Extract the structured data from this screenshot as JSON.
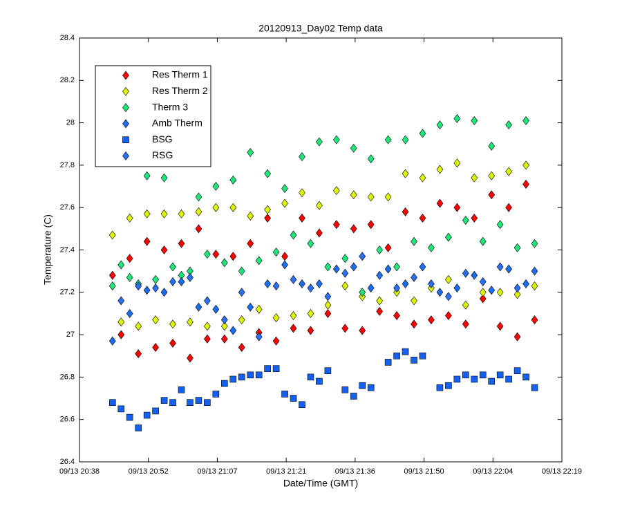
{
  "chart_data": {
    "type": "scatter",
    "title": "20120913_Day02 Temp data",
    "x_label": "Date/Time (GMT)",
    "y_label": "Temperature (C)",
    "x": [
      1245.3,
      1247.1,
      1248.9,
      1250.7,
      1252.5,
      1254.3,
      1256.1,
      1257.9,
      1259.7,
      1261.5,
      1263.3,
      1265.1,
      1266.9,
      1268.7,
      1270.5,
      1272.3,
      1274.1,
      1275.9,
      1277.7,
      1279.5,
      1281.3,
      1283.1,
      1284.9,
      1286.7,
      1288.5,
      1290.3,
      1292.1,
      1293.9,
      1295.7,
      1297.5,
      1299.3,
      1301.1,
      1302.9,
      1304.7,
      1306.5,
      1308.3,
      1310.1,
      1311.9,
      1313.7,
      1315.5,
      1317.3,
      1319.1,
      1320.9,
      1322.7,
      1324.5,
      1326.3,
      1328.1,
      1329.9,
      1331.7,
      1333.5
    ],
    "xlim": [
      1238.4,
      1339.2
    ],
    "xticks": [
      {
        "value": 1238.4,
        "label": "09/13 20:38"
      },
      {
        "value": 1252.8,
        "label": "09/13 20:52"
      },
      {
        "value": 1267.2,
        "label": "09/13 21:07"
      },
      {
        "value": 1281.6,
        "label": "09/13 21:21"
      },
      {
        "value": 1296,
        "label": "09/13 21:36"
      },
      {
        "value": 1310.4,
        "label": "09/13 21:50"
      },
      {
        "value": 1324.8,
        "label": "09/13 22:04"
      },
      {
        "value": 1339.2,
        "label": "09/13 22:19"
      }
    ],
    "ylim": [
      26.4,
      28.4
    ],
    "yticks": [
      26.4,
      26.6,
      26.8,
      27,
      27.2,
      27.4,
      27.6,
      27.8,
      28,
      28.2,
      28.4
    ],
    "legend": "upper left",
    "series": [
      {
        "name": "Res Therm 1",
        "color": "#ff0000",
        "marker": "diamond",
        "values": [
          27.28,
          27.0,
          27.36,
          26.91,
          27.44,
          26.94,
          27.4,
          26.96,
          27.43,
          26.89,
          27.5,
          26.98,
          27.38,
          26.98,
          27.37,
          26.94,
          27.43,
          27.01,
          27.55,
          26.97,
          27.37,
          27.03,
          27.55,
          27.02,
          27.48,
          27.1,
          27.52,
          27.03,
          27.5,
          27.02,
          27.52,
          27.11,
          27.41,
          27.09,
          27.58,
          27.05,
          27.55,
          27.07,
          27.62,
          27.09,
          27.6,
          27.05,
          27.55,
          27.17,
          27.66,
          27.04,
          27.6,
          26.99,
          27.71,
          27.07
        ]
      },
      {
        "name": "Res Therm 2",
        "color": "#dcf500",
        "marker": "diamond",
        "values": [
          27.47,
          27.06,
          27.55,
          27.04,
          27.57,
          27.07,
          27.57,
          27.05,
          27.57,
          27.06,
          27.58,
          27.04,
          27.6,
          27.04,
          27.6,
          27.07,
          27.56,
          27.12,
          27.59,
          27.08,
          27.62,
          27.09,
          27.67,
          27.1,
          27.61,
          27.14,
          27.68,
          27.23,
          27.66,
          27.18,
          27.65,
          27.16,
          27.65,
          27.2,
          27.76,
          27.16,
          27.74,
          27.22,
          27.78,
          27.26,
          27.81,
          27.14,
          27.74,
          27.2,
          27.75,
          27.2,
          27.77,
          27.19,
          27.8,
          27.23
        ]
      },
      {
        "name": "Therm 3",
        "color": "#1ee678",
        "marker": "diamond",
        "values": [
          27.23,
          27.33,
          27.27,
          27.24,
          27.75,
          27.26,
          27.74,
          27.32,
          27.28,
          27.3,
          27.65,
          27.38,
          27.7,
          27.34,
          27.73,
          27.3,
          27.86,
          27.35,
          27.76,
          27.39,
          27.69,
          27.47,
          27.84,
          27.43,
          27.91,
          27.32,
          27.92,
          27.36,
          27.88,
          27.2,
          27.83,
          27.4,
          27.92,
          27.32,
          27.92,
          27.44,
          27.95,
          27.41,
          27.99,
          27.46,
          28.02,
          27.54,
          28.01,
          27.44,
          27.89,
          27.52,
          27.99,
          27.41,
          28.01,
          27.43
        ]
      },
      {
        "name": "Amb Therm",
        "color": "#1a6cf0",
        "marker": "diamond",
        "values": [
          26.97,
          null,
          27.1,
          null,
          27.21,
          null,
          27.2,
          null,
          27.25,
          null,
          27.13,
          null,
          27.12,
          null,
          27.02,
          null,
          27.13,
          null,
          27.24,
          null,
          27.33,
          null,
          27.24,
          null,
          27.24,
          null,
          27.31,
          null,
          27.32,
          null,
          27.22,
          null,
          27.31,
          null,
          27.24,
          null,
          27.32,
          null,
          27.2,
          null,
          27.22,
          null,
          27.28,
          null,
          27.21,
          null,
          27.31,
          null,
          27.24,
          null
        ]
      },
      {
        "name": "BSG",
        "color": "#1560f0",
        "marker": "square",
        "values": [
          26.68,
          26.65,
          26.61,
          26.56,
          26.62,
          26.64,
          26.69,
          26.68,
          26.74,
          26.68,
          26.69,
          26.68,
          26.72,
          26.77,
          26.79,
          26.8,
          26.81,
          26.81,
          26.84,
          26.84,
          26.72,
          26.7,
          26.67,
          26.8,
          26.78,
          26.83,
          null,
          26.74,
          26.71,
          26.76,
          26.75,
          null,
          26.87,
          26.9,
          26.92,
          26.88,
          26.9,
          null,
          26.75,
          26.76,
          26.79,
          26.81,
          26.79,
          26.81,
          26.78,
          26.81,
          26.79,
          26.83,
          26.8,
          26.75
        ]
      },
      {
        "name": "RSG",
        "color": "#2a70f5",
        "marker": "diamond",
        "values": [
          null,
          27.16,
          null,
          27.23,
          null,
          27.22,
          null,
          27.25,
          null,
          27.27,
          null,
          27.16,
          null,
          27.07,
          null,
          27.2,
          null,
          26.99,
          null,
          27.23,
          null,
          27.26,
          null,
          27.22,
          null,
          27.18,
          null,
          27.29,
          null,
          27.37,
          null,
          27.28,
          null,
          27.22,
          null,
          27.27,
          null,
          27.24,
          null,
          27.18,
          null,
          27.29,
          null,
          27.25,
          null,
          27.32,
          null,
          27.22,
          null,
          27.3
        ]
      }
    ]
  }
}
